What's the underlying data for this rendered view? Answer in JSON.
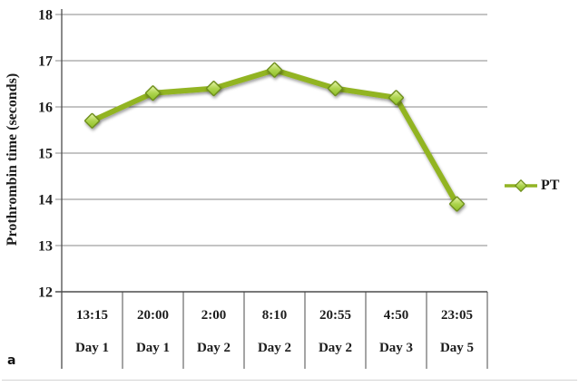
{
  "panel_label": "a",
  "chart_data": {
    "type": "line",
    "title": "",
    "ylabel": "Prothrombin time (seconds)",
    "xlabel": "",
    "ylim": [
      12,
      18
    ],
    "yticks": [
      12,
      13,
      14,
      15,
      16,
      17,
      18
    ],
    "grid": true,
    "legend_position": "right",
    "categories": [
      {
        "time": "13:15",
        "day": "Day 1"
      },
      {
        "time": "20:00",
        "day": "Day 1"
      },
      {
        "time": "2:00",
        "day": "Day 2"
      },
      {
        "time": "8:10",
        "day": "Day 2"
      },
      {
        "time": "20:55",
        "day": "Day 2"
      },
      {
        "time": "4:50",
        "day": "Day 3"
      },
      {
        "time": "23:05",
        "day": "Day 5"
      }
    ],
    "series": [
      {
        "name": "PT",
        "values": [
          15.7,
          16.3,
          16.4,
          16.8,
          16.4,
          16.2,
          13.9
        ],
        "color": "#92B424",
        "marker": "diamond",
        "marker_fill_light": "#EAF6B0",
        "marker_fill_mid": "#AED44F",
        "marker_fill_dark": "#8CBE25",
        "marker_stroke": "#6E8E1C"
      }
    ],
    "axis_color": "#4B4B4B",
    "grid_color": "#8A8A8A",
    "text_color": "#1C1C1C"
  }
}
